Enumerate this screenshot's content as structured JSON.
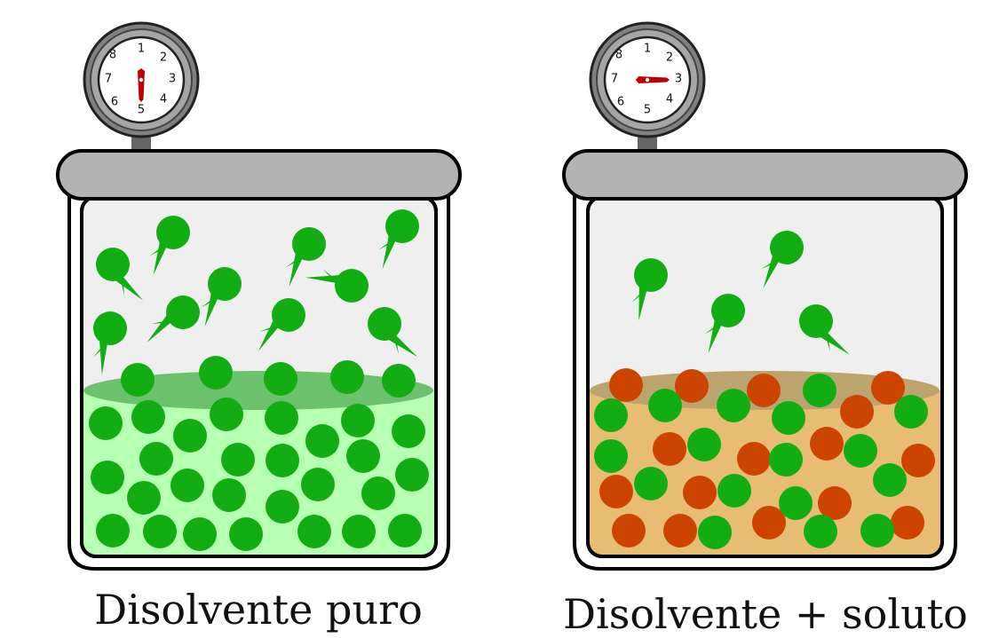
{
  "containers": [
    {
      "caption": "Disolvente puro",
      "liquid_color": "#b7ffb3",
      "surface_color": "#6cc26c",
      "solvent_color": "#12ad12",
      "solute_color": "#cc4400",
      "gauge_numbers": [
        "1",
        "2",
        "3",
        "4",
        "5",
        "6",
        "7",
        "8"
      ],
      "gauge_reading": "5"
    },
    {
      "caption": "Disolvente + soluto",
      "liquid_color": "#e6bd73",
      "surface_color": "#bca46e",
      "solvent_color": "#12ad12",
      "solute_color": "#cc4400",
      "gauge_numbers": [
        "1",
        "2",
        "3",
        "4",
        "5",
        "6",
        "7",
        "8"
      ],
      "gauge_reading": "3"
    }
  ],
  "colors": {
    "lid": "#b3b3b3",
    "vapor_space": "#efefef",
    "needle": "#c00000",
    "gauge_rim": "#808080"
  }
}
